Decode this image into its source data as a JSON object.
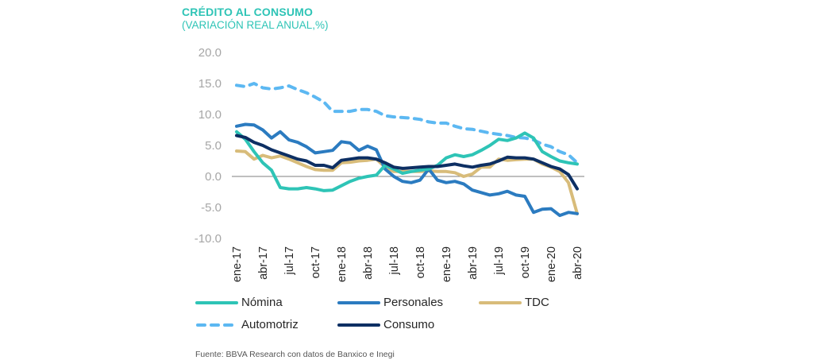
{
  "header": {
    "title": "CRÉDITO AL CONSUMO",
    "subtitle": "(VARIACIÓN REAL ANUAL,%)"
  },
  "footer": {
    "source": "Fuente: BBVA Research con datos de Banxico e Inegi"
  },
  "chart_data": {
    "type": "line",
    "title": "CRÉDITO AL CONSUMO",
    "subtitle": "(VARIACIÓN REAL ANUAL,%)",
    "xlabel": "",
    "ylabel": "",
    "ylim": [
      -10,
      20
    ],
    "yticks": [
      "20.0",
      "15.0",
      "10.0",
      "5.0",
      "0.0",
      "-5.0",
      "-10.0"
    ],
    "ytick_values": [
      20,
      15,
      10,
      5,
      0,
      -5,
      -10
    ],
    "grid": false,
    "legend_position": "bottom",
    "x": [
      "ene-17",
      "feb-17",
      "mar-17",
      "abr-17",
      "may-17",
      "jun-17",
      "jul-17",
      "ago-17",
      "sep-17",
      "oct-17",
      "nov-17",
      "dic-17",
      "ene-18",
      "feb-18",
      "mar-18",
      "abr-18",
      "may-18",
      "jun-18",
      "jul-18",
      "ago-18",
      "sep-18",
      "oct-18",
      "nov-18",
      "dic-18",
      "ene-19",
      "feb-19",
      "mar-19",
      "abr-19",
      "may-19",
      "jun-19",
      "jul-19",
      "ago-19",
      "sep-19",
      "oct-19",
      "nov-19",
      "dic-19",
      "ene-20",
      "feb-20",
      "mar-20",
      "abr-20"
    ],
    "xticks": [
      "ene-17",
      "abr-17",
      "jul-17",
      "oct-17",
      "ene-18",
      "abr-18",
      "jul-18",
      "oct-18",
      "ene-19",
      "abr-19",
      "jul-19",
      "oct-19",
      "ene-20",
      "abr-20"
    ],
    "series": [
      {
        "name": "Nómina",
        "color": "#2ec4b6",
        "dash": false,
        "values": [
          7.2,
          6.0,
          4.0,
          2.2,
          1.0,
          -1.8,
          -2.0,
          -2.0,
          -1.8,
          -2.0,
          -2.3,
          -2.2,
          -1.5,
          -0.8,
          -0.3,
          0.0,
          0.2,
          1.8,
          1.2,
          0.5,
          0.8,
          1.0,
          1.2,
          1.8,
          3.0,
          3.5,
          3.2,
          3.5,
          4.2,
          5.0,
          6.0,
          5.8,
          6.2,
          7.0,
          6.2,
          4.0,
          3.2,
          2.5,
          2.2,
          2.0
        ]
      },
      {
        "name": "Personales",
        "color": "#2b7bc0",
        "dash": false,
        "values": [
          8.1,
          8.4,
          8.3,
          7.5,
          6.2,
          7.2,
          5.9,
          5.5,
          4.8,
          3.8,
          4.0,
          4.2,
          5.6,
          5.4,
          4.2,
          4.9,
          4.3,
          1.2,
          0.0,
          -0.8,
          -1.0,
          -0.6,
          1.2,
          -0.6,
          -1.0,
          -0.8,
          -1.2,
          -2.2,
          -2.6,
          -3.0,
          -2.8,
          -2.4,
          -3.0,
          -3.2,
          -5.8,
          -5.3,
          -5.2,
          -6.3,
          -5.8,
          -6.0
        ]
      },
      {
        "name": "TDC",
        "color": "#d8bc7a",
        "dash": false,
        "values": [
          4.1,
          4.0,
          2.8,
          3.4,
          3.0,
          3.3,
          2.8,
          2.2,
          1.6,
          1.1,
          1.0,
          1.0,
          2.2,
          2.3,
          2.5,
          2.6,
          2.8,
          1.5,
          0.8,
          0.8,
          0.8,
          0.8,
          0.9,
          0.8,
          0.8,
          0.6,
          0.0,
          0.4,
          1.5,
          1.5,
          2.8,
          2.6,
          2.7,
          2.8,
          2.8,
          2.0,
          1.5,
          0.8,
          -1.0,
          -6.0
        ]
      },
      {
        "name": "Automotriz",
        "color": "#5cb8f2",
        "dash": true,
        "values": [
          14.7,
          14.5,
          15.0,
          14.3,
          14.1,
          14.3,
          14.6,
          14.0,
          13.5,
          12.8,
          12.0,
          10.5,
          10.5,
          10.5,
          10.8,
          10.8,
          10.5,
          9.8,
          9.6,
          9.5,
          9.4,
          9.2,
          8.8,
          8.6,
          8.6,
          8.1,
          7.7,
          7.6,
          7.3,
          7.0,
          6.8,
          6.6,
          6.3,
          6.2,
          5.9,
          5.2,
          4.8,
          4.0,
          3.5,
          2.2
        ]
      },
      {
        "name": "Consumo",
        "color": "#0d2f63",
        "dash": false,
        "values": [
          6.6,
          6.3,
          5.5,
          5.0,
          4.3,
          3.8,
          3.3,
          2.8,
          2.5,
          1.8,
          1.8,
          1.4,
          2.6,
          2.8,
          3.0,
          3.0,
          2.8,
          2.2,
          1.5,
          1.3,
          1.4,
          1.5,
          1.6,
          1.6,
          1.8,
          2.0,
          1.7,
          1.5,
          1.8,
          2.0,
          2.5,
          3.1,
          3.0,
          3.0,
          2.8,
          2.2,
          1.6,
          1.2,
          0.3,
          -2.0
        ]
      }
    ]
  }
}
